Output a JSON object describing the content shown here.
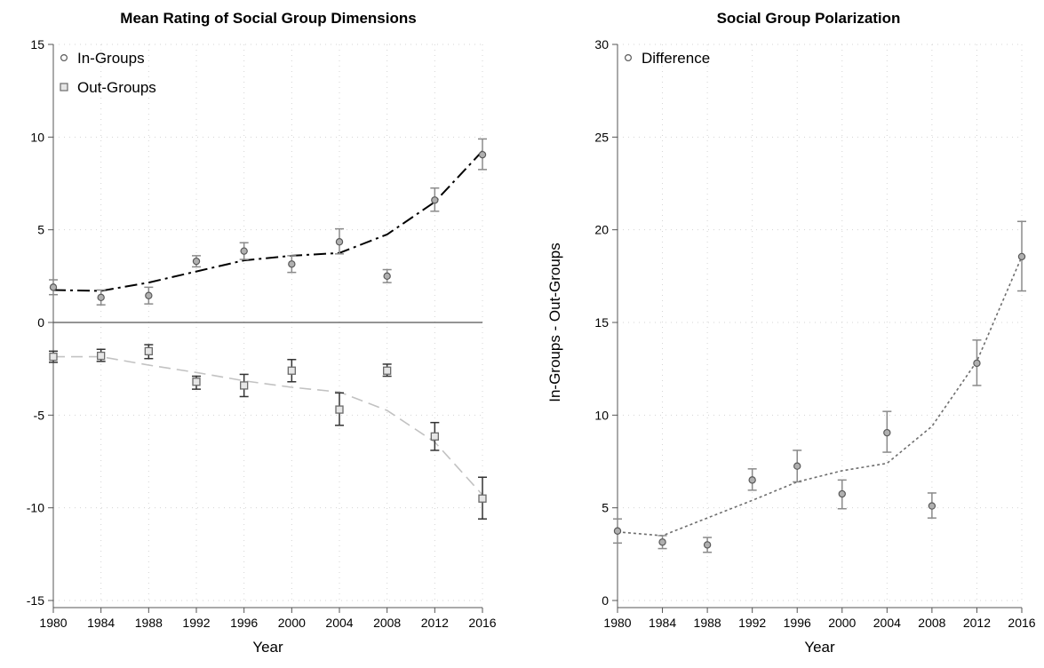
{
  "chart_data": [
    {
      "type": "scatter",
      "title": "Mean Rating of Social Group Dimensions",
      "xlabel": "Year",
      "ylabel": "",
      "x": [
        1980,
        1984,
        1988,
        1992,
        1996,
        2000,
        2004,
        2008,
        2012,
        2016
      ],
      "x_ticks": [
        "1980",
        "1984",
        "1988",
        "1992",
        "1996",
        "2000",
        "2004",
        "2008",
        "2012",
        "2016"
      ],
      "y_ticks": [
        "-15",
        "-10",
        "-5",
        "0",
        "5",
        "10",
        "15"
      ],
      "xlim": [
        1980,
        2016
      ],
      "ylim": [
        -15,
        15
      ],
      "grid": true,
      "zero_line": true,
      "legend_position": "top-left",
      "series": [
        {
          "name": "In-Groups",
          "marker": "circle",
          "color": "#8a8a8a",
          "values": [
            1.9,
            1.35,
            1.45,
            3.3,
            3.85,
            3.15,
            4.35,
            2.5,
            6.6,
            9.05
          ],
          "ci_low": [
            1.5,
            0.95,
            1.0,
            3.0,
            3.4,
            2.7,
            3.7,
            2.15,
            6.0,
            8.25
          ],
          "ci_high": [
            2.3,
            1.75,
            1.9,
            3.6,
            4.3,
            3.6,
            5.05,
            2.85,
            7.25,
            9.9
          ],
          "fit_line": [
            1.75,
            1.7,
            2.15,
            2.75,
            3.35,
            3.6,
            3.75,
            4.75,
            6.5,
            9.25
          ],
          "fit_style": "dash-dot",
          "fit_color": "#000000"
        },
        {
          "name": "Out-Groups",
          "marker": "square",
          "color": "#8a8a8a",
          "values": [
            -1.85,
            -1.8,
            -1.55,
            -3.2,
            -3.4,
            -2.6,
            -4.7,
            -2.6,
            -6.15,
            -9.5
          ],
          "ci_low": [
            -2.15,
            -2.1,
            -1.95,
            -3.6,
            -4.0,
            -3.2,
            -5.55,
            -2.9,
            -6.9,
            -10.6
          ],
          "ci_high": [
            -1.55,
            -1.45,
            -1.2,
            -2.9,
            -2.8,
            -2.0,
            -3.8,
            -2.25,
            -5.4,
            -8.35
          ],
          "fit_line": [
            -1.85,
            -1.85,
            -2.3,
            -2.7,
            -3.15,
            -3.5,
            -3.75,
            -4.75,
            -6.45,
            -9.3
          ],
          "fit_style": "dashed",
          "fit_color": "#c2c2c2"
        }
      ]
    },
    {
      "type": "scatter",
      "title": "Social Group Polarization",
      "xlabel": "Year",
      "ylabel": "In-Groups - Out-Groups",
      "x": [
        1980,
        1984,
        1988,
        1992,
        1996,
        2000,
        2004,
        2008,
        2012,
        2016
      ],
      "x_ticks": [
        "1980",
        "1984",
        "1988",
        "1992",
        "1996",
        "2000",
        "2004",
        "2008",
        "2012",
        "2016"
      ],
      "y_ticks": [
        "0",
        "5",
        "10",
        "15",
        "20",
        "25",
        "30"
      ],
      "xlim": [
        1980,
        2016
      ],
      "ylim": [
        0,
        30
      ],
      "grid": true,
      "zero_line": false,
      "legend_position": "top-left",
      "series": [
        {
          "name": "Difference",
          "marker": "circle",
          "color": "#8a8a8a",
          "values": [
            3.75,
            3.15,
            3.0,
            6.5,
            7.25,
            5.75,
            9.05,
            5.1,
            12.8,
            18.55
          ],
          "ci_low": [
            3.1,
            2.8,
            2.6,
            5.95,
            6.4,
            4.95,
            8.0,
            4.45,
            11.6,
            16.7
          ],
          "ci_high": [
            4.4,
            3.5,
            3.4,
            7.1,
            8.1,
            6.5,
            10.2,
            5.8,
            14.05,
            20.45
          ],
          "fit_line": [
            3.7,
            3.5,
            4.45,
            5.4,
            6.4,
            7.0,
            7.4,
            9.4,
            12.9,
            18.55
          ],
          "fit_style": "dotted",
          "fit_color": "#6e6e6e"
        }
      ]
    }
  ]
}
